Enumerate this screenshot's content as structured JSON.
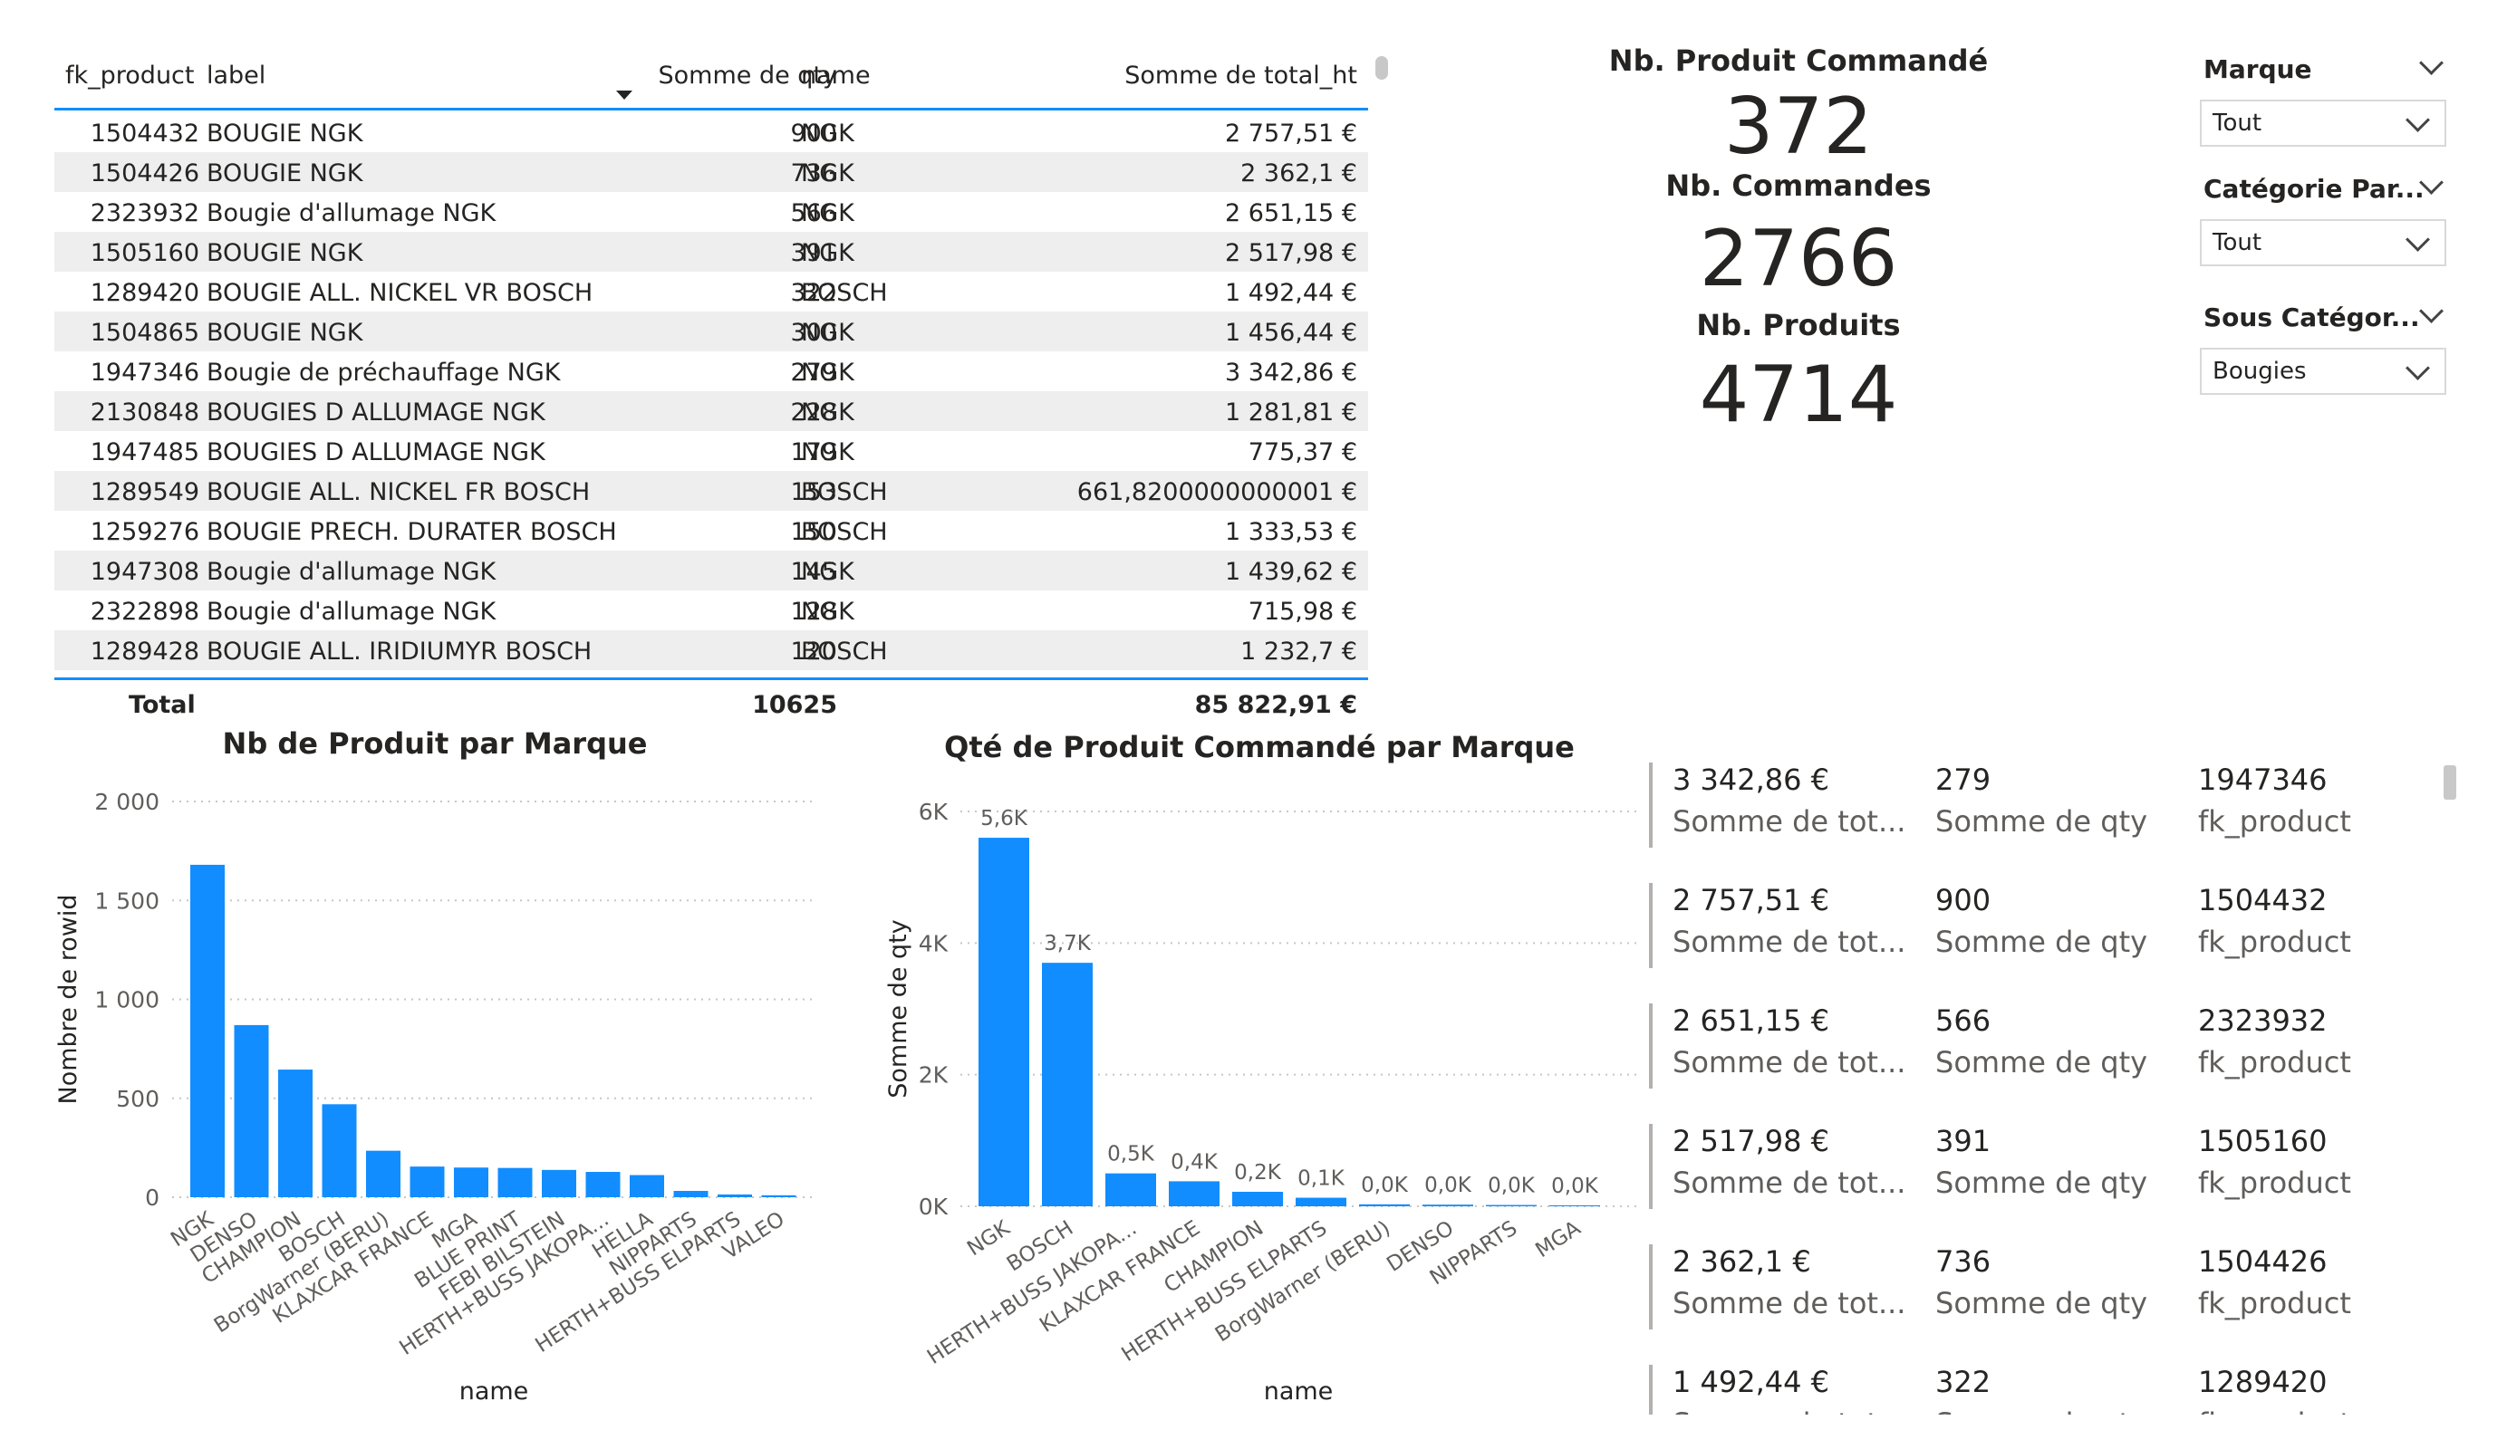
{
  "table": {
    "headers": {
      "fk_product": "fk_product",
      "label": "label",
      "qty": "Somme de qty",
      "name": "name",
      "total": "Somme de total_ht"
    },
    "rows": [
      {
        "fk_product": "1504432",
        "label": "BOUGIE NGK",
        "qty": "900",
        "name": "NGK",
        "total": "2 757,51 €"
      },
      {
        "fk_product": "1504426",
        "label": "BOUGIE NGK",
        "qty": "736",
        "name": "NGK",
        "total": "2 362,1 €"
      },
      {
        "fk_product": "2323932",
        "label": "Bougie d'allumage NGK",
        "qty": "566",
        "name": "NGK",
        "total": "2 651,15 €"
      },
      {
        "fk_product": "1505160",
        "label": "BOUGIE NGK",
        "qty": "391",
        "name": "NGK",
        "total": "2 517,98 €"
      },
      {
        "fk_product": "1289420",
        "label": "BOUGIE ALL. NICKEL VR BOSCH",
        "qty": "322",
        "name": "BOSCH",
        "total": "1 492,44 €"
      },
      {
        "fk_product": "1504865",
        "label": "BOUGIE NGK",
        "qty": "300",
        "name": "NGK",
        "total": "1 456,44 €"
      },
      {
        "fk_product": "1947346",
        "label": "Bougie de préchauffage NGK",
        "qty": "279",
        "name": "NGK",
        "total": "3 342,86 €"
      },
      {
        "fk_product": "2130848",
        "label": "BOUGIES D ALLUMAGE NGK",
        "qty": "228",
        "name": "NGK",
        "total": "1 281,81 €"
      },
      {
        "fk_product": "1947485",
        "label": "BOUGIES D ALLUMAGE NGK",
        "qty": "179",
        "name": "NGK",
        "total": "775,37 €"
      },
      {
        "fk_product": "1289549",
        "label": "BOUGIE ALL. NICKEL FR BOSCH",
        "qty": "153",
        "name": "BOSCH",
        "total": "661,8200000000001 €"
      },
      {
        "fk_product": "1259276",
        "label": "BOUGIE PRECH. DURATER BOSCH",
        "qty": "150",
        "name": "BOSCH",
        "total": "1 333,53 €"
      },
      {
        "fk_product": "1947308",
        "label": "Bougie d'allumage NGK",
        "qty": "145",
        "name": "NGK",
        "total": "1 439,62 €"
      },
      {
        "fk_product": "2322898",
        "label": "Bougie d'allumage NGK",
        "qty": "128",
        "name": "NGK",
        "total": "715,98 €"
      },
      {
        "fk_product": "1289428",
        "label": "BOUGIE ALL. IRIDIUMYR BOSCH",
        "qty": "120",
        "name": "BOSCH",
        "total": "1 232,7 €"
      }
    ],
    "total": {
      "label": "Total",
      "qty": "10625",
      "total": "85 822,91 €"
    }
  },
  "kpis": {
    "produit_commande": {
      "title": "Nb. Produit Commandé",
      "value": "372"
    },
    "commandes": {
      "title": "Nb. Commandes",
      "value": "2766"
    },
    "produits": {
      "title": "Nb. Produits",
      "value": "4714"
    }
  },
  "slicers": {
    "marque": {
      "title": "Marque",
      "value": "Tout"
    },
    "categorie": {
      "title": "Catégorie Par...",
      "value": "Tout"
    },
    "sous_categorie": {
      "title": "Sous Catégor...",
      "value": "Bougies"
    }
  },
  "chart_data": [
    {
      "type": "bar",
      "title": "Nb de Produit par Marque",
      "xlabel": "name",
      "ylabel": "Nombre de rowid",
      "ylim": [
        0,
        2000
      ],
      "yticks": [
        "0",
        "500",
        "1 000",
        "1 500",
        "2 000"
      ],
      "categories": [
        "NGK",
        "DENSO",
        "CHAMPION",
        "BOSCH",
        "BorgWarner (BERU)",
        "KLAXCAR FRANCE",
        "MGA",
        "BLUE PRINT",
        "FEBI BILSTEIN",
        "HERTH+BUSS JAKOPA...",
        "HELLA",
        "NIPPARTS",
        "HERTH+BUSS ELPARTS",
        "VALEO"
      ],
      "values": [
        1680,
        870,
        645,
        470,
        235,
        155,
        150,
        148,
        138,
        128,
        112,
        32,
        14,
        10
      ],
      "color": "#118dff",
      "grid": true
    },
    {
      "type": "bar",
      "title": "Qté de Produit Commandé par Marque",
      "xlabel": "name",
      "ylabel": "Somme de qty",
      "ylim": [
        0,
        6000
      ],
      "yticks": [
        "0K",
        "2K",
        "4K",
        "6K"
      ],
      "categories": [
        "NGK",
        "BOSCH",
        "HERTH+BUSS JAKOPA...",
        "KLAXCAR FRANCE",
        "CHAMPION",
        "HERTH+BUSS ELPARTS",
        "BorgWarner (BERU)",
        "DENSO",
        "NIPPARTS",
        "MGA"
      ],
      "values": [
        5600,
        3700,
        500,
        380,
        220,
        130,
        30,
        25,
        20,
        15
      ],
      "data_labels": [
        "5,6K",
        "3,7K",
        "0,5K",
        "0,4K",
        "0,2K",
        "0,1K",
        "0,0K",
        "0,0K",
        "0,0K",
        "0,0K"
      ],
      "color": "#118dff",
      "grid": true
    }
  ],
  "multirow": {
    "field_labels": {
      "total": "Somme de tot...",
      "qty": "Somme de qty",
      "fk": "fk_product"
    },
    "rows": [
      {
        "total": "3 342,86 €",
        "qty": "279",
        "fk": "1947346"
      },
      {
        "total": "2 757,51 €",
        "qty": "900",
        "fk": "1504432"
      },
      {
        "total": "2 651,15 €",
        "qty": "566",
        "fk": "2323932"
      },
      {
        "total": "2 517,98 €",
        "qty": "391",
        "fk": "1505160"
      },
      {
        "total": "2 362,1 €",
        "qty": "736",
        "fk": "1504426"
      },
      {
        "total": "1 492,44 €",
        "qty": "322",
        "fk": "1289420"
      }
    ]
  }
}
